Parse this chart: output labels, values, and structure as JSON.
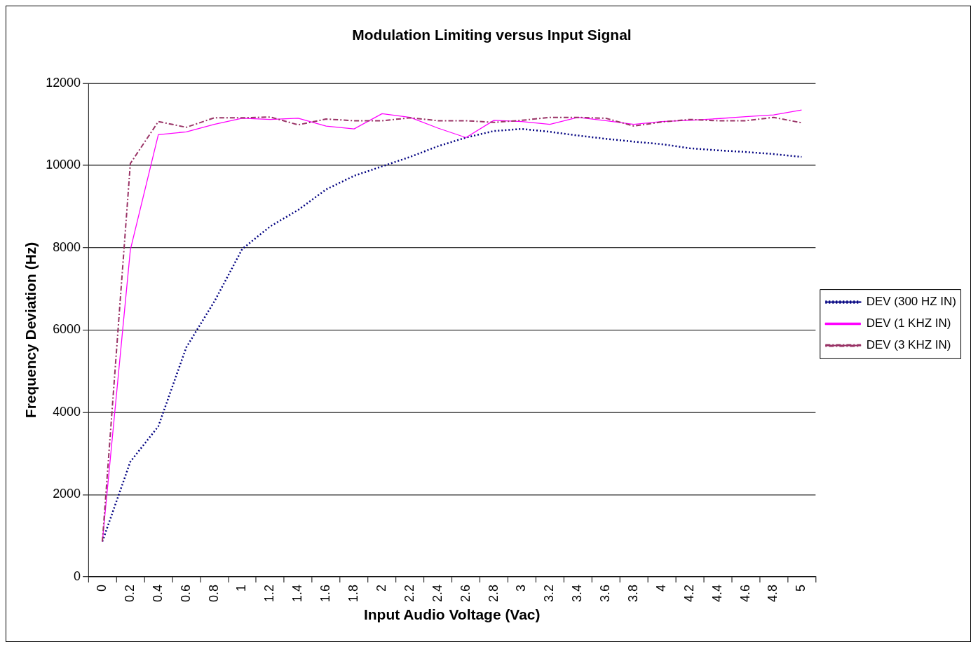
{
  "chart_data": {
    "type": "line",
    "title": "Modulation Limiting versus Input Signal",
    "xlabel": "Input Audio Voltage (Vac)",
    "ylabel": "Frequency Deviation (Hz)",
    "categories": [
      "0",
      "0.2",
      "0.4",
      "0.6",
      "0.8",
      "1",
      "1.2",
      "1.4",
      "1.6",
      "1.8",
      "2",
      "2.2",
      "2.4",
      "2.6",
      "2.8",
      "3",
      "3.2",
      "3.4",
      "3.6",
      "3.8",
      "4",
      "4.2",
      "4.4",
      "4.6",
      "4.8",
      "5"
    ],
    "series": [
      {
        "name": "DEV (300 HZ IN)",
        "color": "#000080",
        "line_style": "dotted",
        "values": [
          860,
          2800,
          3660,
          5580,
          6690,
          7970,
          8520,
          8920,
          9420,
          9750,
          9980,
          10210,
          10470,
          10680,
          10840,
          10890,
          10820,
          10730,
          10650,
          10580,
          10520,
          10420,
          10370,
          10330,
          10280,
          10210
        ]
      },
      {
        "name": "DEV (1 KHZ IN)",
        "color": "#ff00ff",
        "line_style": "solid",
        "values": [
          860,
          7950,
          10750,
          10820,
          11000,
          11150,
          11120,
          11150,
          10960,
          10890,
          11260,
          11170,
          10910,
          10680,
          11100,
          11070,
          11000,
          11170,
          11090,
          11000,
          11070,
          11100,
          11140,
          11190,
          11230,
          11350
        ]
      },
      {
        "name": "DEV (3 KHZ IN)",
        "color": "#993366",
        "line_style": "dashed",
        "values": [
          860,
          10050,
          11070,
          10930,
          11160,
          11160,
          11180,
          10990,
          11130,
          11090,
          11090,
          11160,
          11090,
          11090,
          11050,
          11100,
          11170,
          11170,
          11150,
          10960,
          11060,
          11120,
          11090,
          11090,
          11170,
          11040
        ]
      }
    ],
    "ylim": [
      0,
      12000
    ],
    "yticks": [
      0,
      2000,
      4000,
      6000,
      8000,
      10000,
      12000
    ],
    "grid": "y",
    "legend": "right",
    "marker": "none"
  }
}
